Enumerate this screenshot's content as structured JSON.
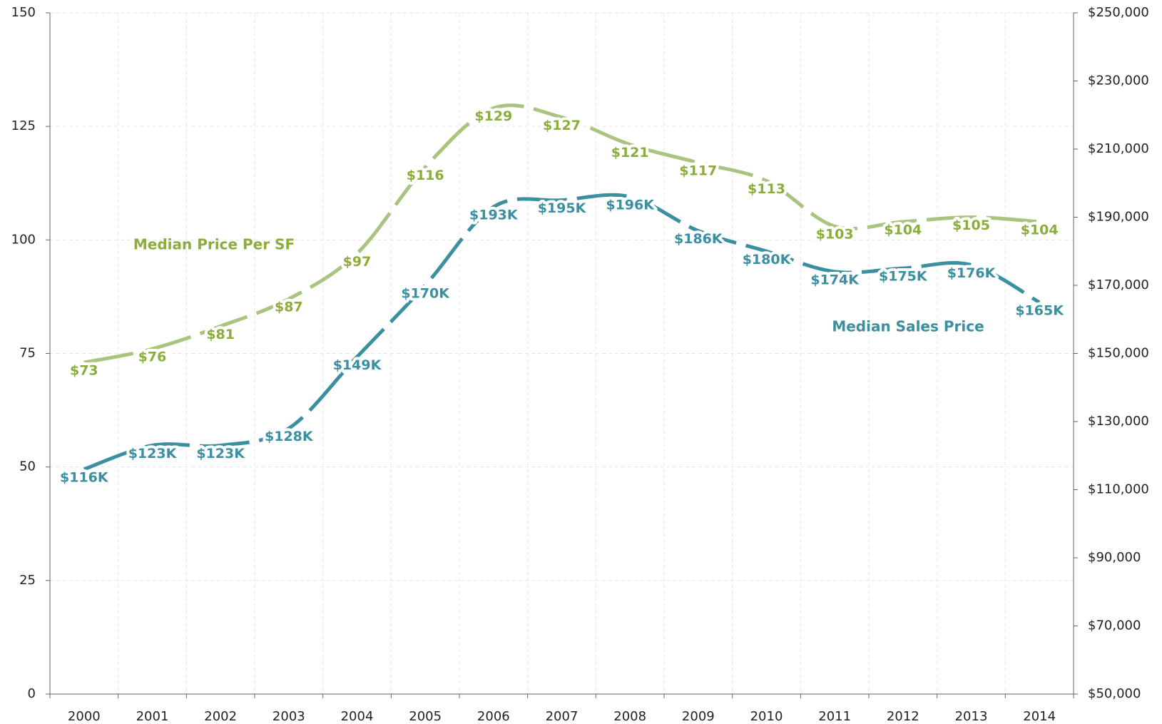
{
  "chart_data": {
    "type": "line",
    "categories": [
      "2000",
      "2001",
      "2002",
      "2003",
      "2004",
      "2005",
      "2006",
      "2007",
      "2008",
      "2009",
      "2010",
      "2011",
      "2012",
      "2013",
      "2014"
    ],
    "series": [
      {
        "name": "Median Price Per SF",
        "color": "#a8c47e",
        "label_color": "#8aad3c",
        "values": [
          73,
          76,
          81,
          87,
          97,
          116,
          129,
          127,
          121,
          117,
          113,
          103,
          104,
          105,
          104
        ],
        "value_labels": [
          "$73",
          "$76",
          "$81",
          "$87",
          "$97",
          "$116",
          "$129",
          "$127",
          "$121",
          "$117",
          "$113",
          "$103",
          "$104",
          "$105",
          "$104"
        ]
      },
      {
        "name": "Median Sales Price",
        "color": "#3a8fa1",
        "label_color": "#3a8fa1",
        "axis": "y2",
        "values": [
          116000,
          123000,
          123000,
          128000,
          149000,
          170000,
          193000,
          195000,
          196000,
          186000,
          180000,
          174000,
          175000,
          176000,
          165000
        ],
        "value_labels": [
          "$116K",
          "$123K",
          "$123K",
          "$128K",
          "$149K",
          "$170K",
          "$193K",
          "$195K",
          "$196K",
          "$186K",
          "$180K",
          "$174K",
          "$175K",
          "$176K",
          "$165K"
        ]
      }
    ],
    "ylim": [
      0,
      150
    ],
    "yticks": [
      0,
      25,
      50,
      75,
      100,
      125,
      150
    ],
    "y2lim": [
      50000,
      250000
    ],
    "y2ticks": [
      {
        "value": 50000,
        "label": "$50,000"
      },
      {
        "value": 70000,
        "label": "$70,000"
      },
      {
        "value": 90000,
        "label": "$90,000"
      },
      {
        "value": 110000,
        "label": "$110,000"
      },
      {
        "value": 130000,
        "label": "$130,000"
      },
      {
        "value": 150000,
        "label": "$150,000"
      },
      {
        "value": 170000,
        "label": "$170,000"
      },
      {
        "value": 190000,
        "label": "$190,000"
      },
      {
        "value": 210000,
        "label": "$210,000"
      },
      {
        "value": 230000,
        "label": "$230,000"
      },
      {
        "value": 250000,
        "label": "$250,000"
      }
    ],
    "grid": true
  }
}
